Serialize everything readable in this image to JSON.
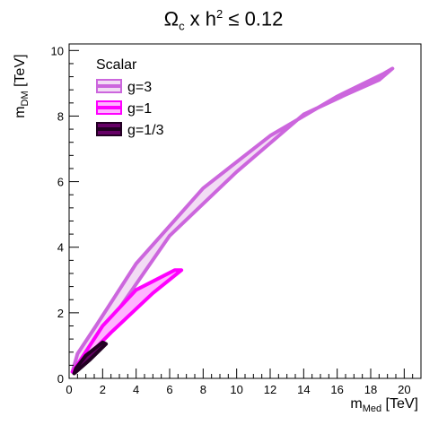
{
  "chart_data": {
    "type": "area",
    "title": {
      "main": "Ω",
      "sub": "c",
      "mid": " x h",
      "sup": "2",
      "tail": " ≤ 0.12"
    },
    "xlabel": {
      "main": "m",
      "sub": "Med",
      "unit": " [TeV]"
    },
    "ylabel": {
      "main": "m",
      "sub": "DM",
      "unit": " [TeV]"
    },
    "xlim": [
      0,
      21
    ],
    "ylim": [
      0,
      10.2
    ],
    "xticks": [
      0,
      2,
      4,
      6,
      8,
      10,
      12,
      14,
      16,
      18,
      20
    ],
    "yticks": [
      0,
      2,
      4,
      6,
      8,
      10
    ],
    "grid": false,
    "legend": {
      "title": "Scalar",
      "position": "top-left"
    },
    "series": [
      {
        "name": "g=3",
        "color": "#cc66dd",
        "fill": "#f2dcf4",
        "width": 4,
        "contour": [
          [
            0.2,
            0.2
          ],
          [
            2,
            1.4
          ],
          [
            6,
            4.35
          ],
          [
            10,
            6.3
          ],
          [
            14,
            8.05
          ],
          [
            16.5,
            8.65
          ],
          [
            18.5,
            9.1
          ],
          [
            19.3,
            9.45
          ],
          [
            18.8,
            9.3
          ],
          [
            16,
            8.6
          ],
          [
            12,
            7.4
          ],
          [
            8,
            5.8
          ],
          [
            4,
            3.5
          ],
          [
            1.6,
            1.6
          ],
          [
            0.5,
            0.75
          ],
          [
            0.2,
            0.2
          ]
        ]
      },
      {
        "name": "g=1",
        "color": "#ff00ff",
        "fill": "#ffb3ff",
        "width": 4,
        "contour": [
          [
            0.2,
            0.2
          ],
          [
            2.5,
            1.4
          ],
          [
            5,
            2.6
          ],
          [
            6.7,
            3.3
          ],
          [
            6.3,
            3.3
          ],
          [
            4,
            2.7
          ],
          [
            2,
            1.6
          ],
          [
            0.6,
            0.5
          ],
          [
            0.2,
            0.2
          ]
        ]
      },
      {
        "name": "g=1/3",
        "color": "#220022",
        "fill": "#660066",
        "width": 4,
        "contour": [
          [
            0.3,
            0.15
          ],
          [
            1.2,
            0.55
          ],
          [
            2.2,
            1.05
          ],
          [
            2,
            1.1
          ],
          [
            1,
            0.7
          ],
          [
            0.4,
            0.3
          ],
          [
            0.3,
            0.15
          ]
        ]
      }
    ]
  }
}
